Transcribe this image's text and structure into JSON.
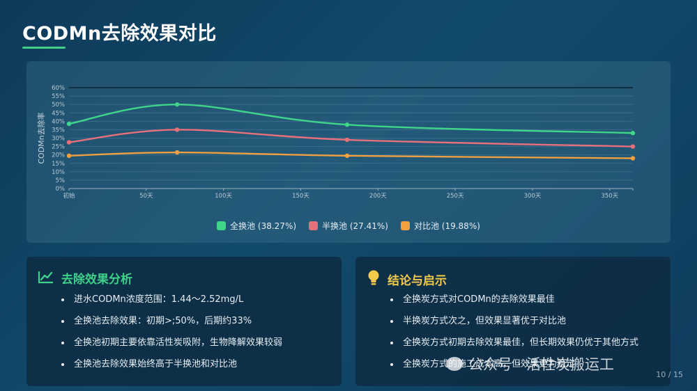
{
  "page": {
    "title": "CODMn去除效果对比",
    "page_number": "10 / 15",
    "accent_color": "#3fd08a"
  },
  "chart_data": {
    "type": "line",
    "ylabel": "CODMn去除率",
    "xlabel": "",
    "x_ticks": [
      "初始",
      "50天",
      "100天",
      "150天",
      "200天",
      "250天",
      "300天",
      "350天"
    ],
    "x_tick_values": [
      0,
      50,
      100,
      150,
      200,
      250,
      300,
      350
    ],
    "y_ticks": [
      "0%",
      "5%",
      "10%",
      "15%",
      "20%",
      "25%",
      "30%",
      "35%",
      "40%",
      "45%",
      "50%",
      "55%",
      "60%"
    ],
    "xlim": [
      0,
      365
    ],
    "ylim": [
      0,
      60
    ],
    "grid": true,
    "legend_position": "bottom-center",
    "series": [
      {
        "name": "全换池 (38.27%)",
        "color": "#3fd68a",
        "x": [
          0,
          70,
          180,
          365
        ],
        "y": [
          38.5,
          50.0,
          38.0,
          33.0
        ]
      },
      {
        "name": "半换池 (27.41%)",
        "color": "#e8707a",
        "x": [
          0,
          70,
          180,
          365
        ],
        "y": [
          27.5,
          35.0,
          29.0,
          25.0
        ]
      },
      {
        "name": "对比池 (19.88%)",
        "color": "#f0a040",
        "x": [
          0,
          70,
          180,
          365
        ],
        "y": [
          19.5,
          21.5,
          19.5,
          18.0
        ]
      }
    ]
  },
  "analysis": {
    "icon": "trend-chart-icon",
    "title": "去除效果分析",
    "items": [
      "进水CODMn浓度范围：1.44～2.52mg/L",
      "全换池去除效果：初期>;50%，后期约33%",
      "全换池初期主要依靠活性炭吸附，生物降解效果较弱",
      "全换池去除效果始终高于半换池和对比池"
    ]
  },
  "conclusion": {
    "icon": "lightbulb-icon",
    "title": "结论与启示",
    "items": [
      "全换炭方式对CODMn的去除效果最佳",
      "半换炭方式次之，但效果显著优于对比池",
      "全换炭方式初期去除效果最佳，但长期效果仍优于其他方式",
      "全换炭方式的施工成本高，但效果更为稳定"
    ]
  },
  "watermark": {
    "text": "公众号 · 活性炭搬运工"
  }
}
